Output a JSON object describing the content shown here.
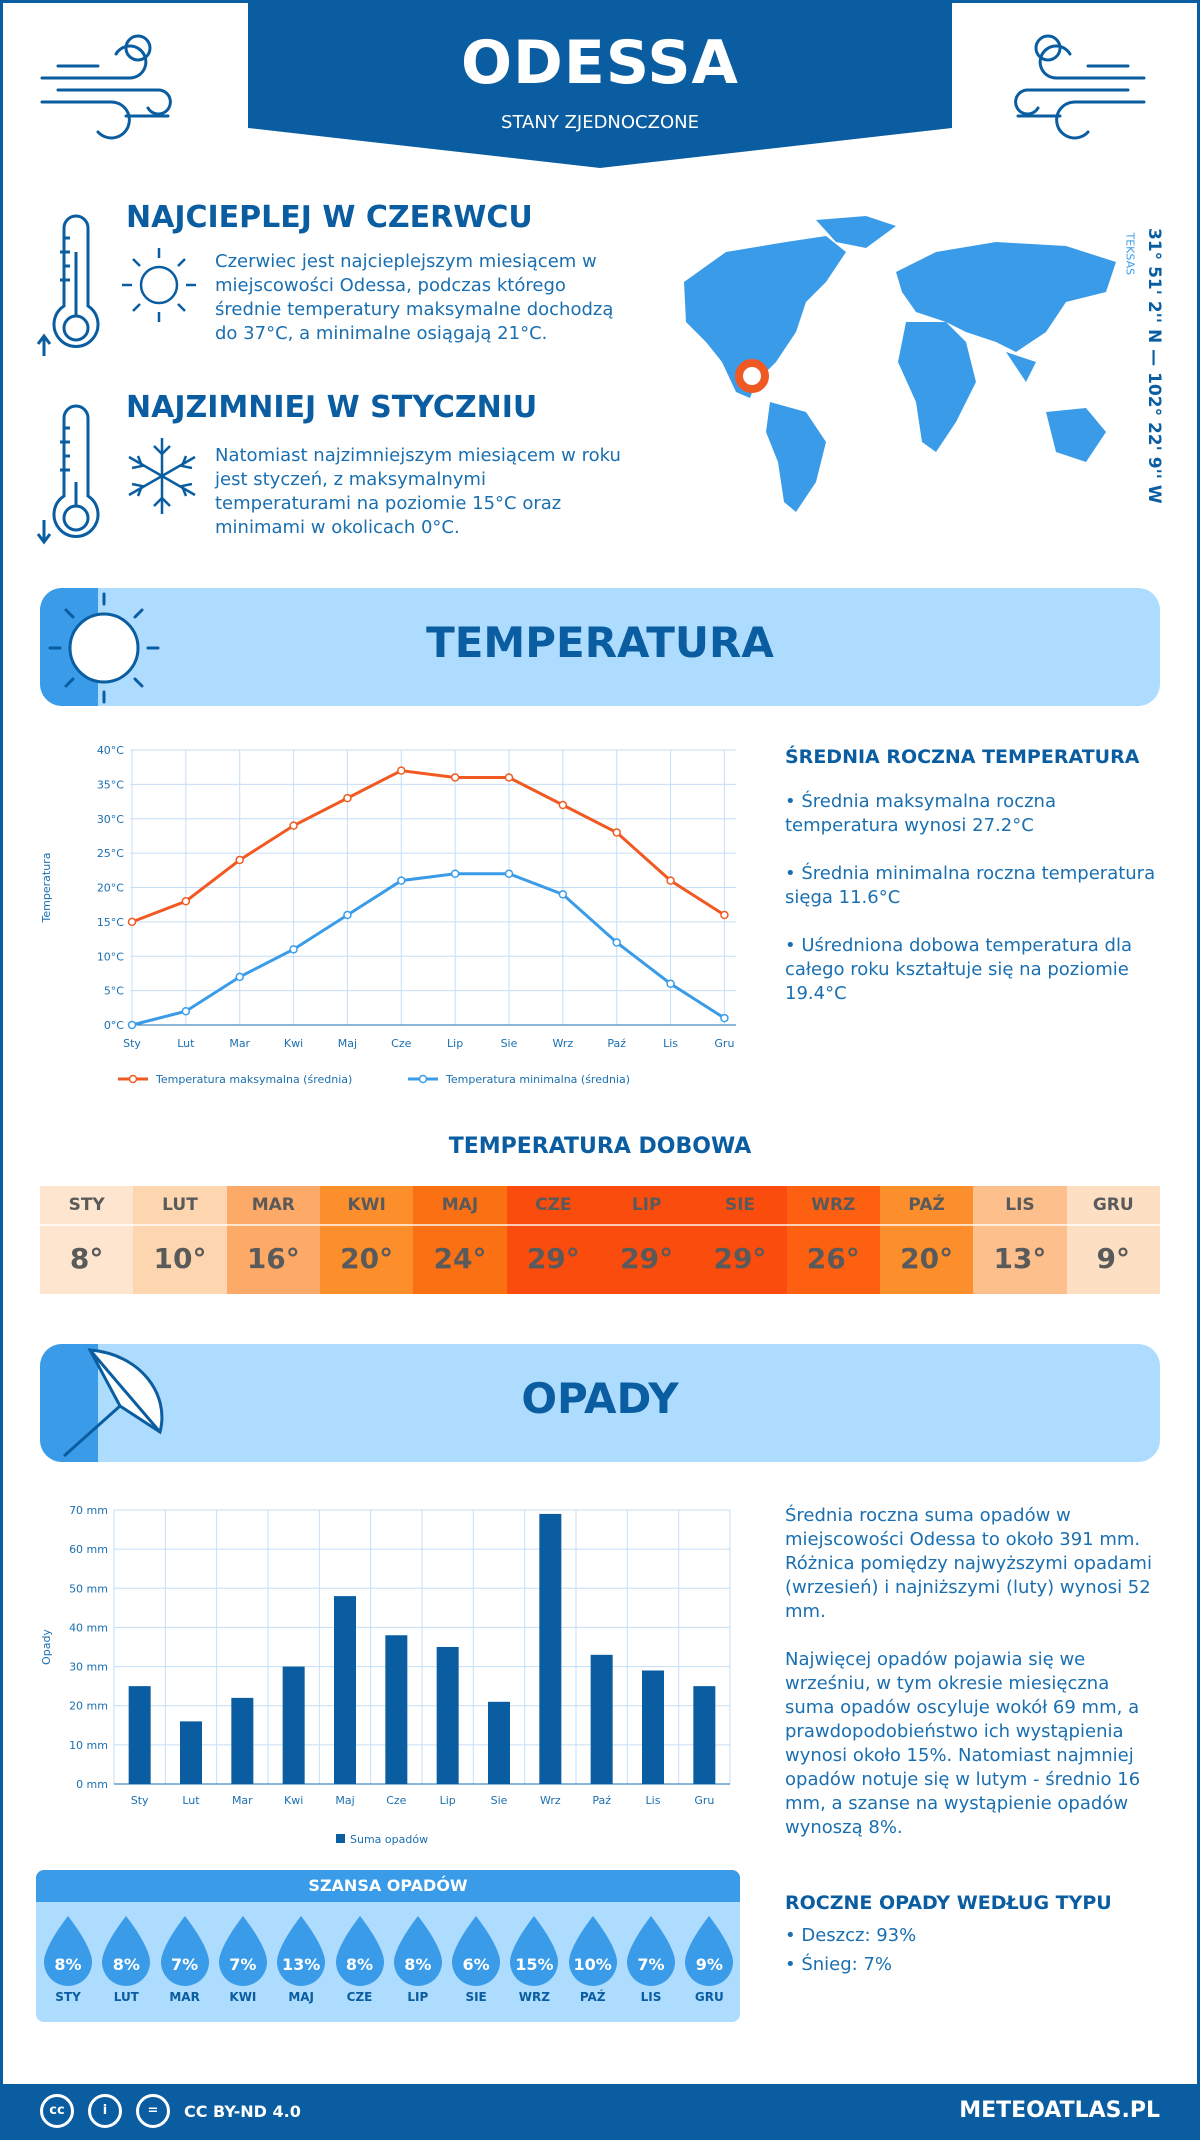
{
  "header": {
    "city": "ODESSA",
    "country": "STANY ZJEDNOCZONE"
  },
  "hottest": {
    "title": "NAJCIEPLEJ W CZERWCU",
    "text": "Czerwiec jest najcieplejszym miesiącem w miejscowości Odessa, podczas którego średnie temperatury maksymalne dochodzą do 37°C, a minimalne osiągają 21°C."
  },
  "coldest": {
    "title": "NAJZIMNIEJ W STYCZNIU",
    "text": "Natomiast najzimniejszym miesiącem w roku jest styczeń, z maksymalnymi temperaturami na poziomie 15°C oraz minimami w okolicach 0°C."
  },
  "location": {
    "coords": "31° 51' 2'' N — 102° 22' 9'' W",
    "region": "TEKSAS"
  },
  "temperature": {
    "section_title": "TEMPERATURA",
    "side_title": "ŚREDNIA ROCZNA TEMPERATURA",
    "bullets": [
      "• Średnia maksymalna roczna temperatura wynosi 27.2°C",
      "• Średnia minimalna roczna temperatura sięga 11.6°C",
      "• Uśredniona dobowa temperatura dla całego roku kształtuje się na poziomie 19.4°C"
    ],
    "daily_title": "TEMPERATURA DOBOWA",
    "daily": [
      {
        "m": "STY",
        "v": "8°",
        "c": "#fde5cf"
      },
      {
        "m": "LUT",
        "v": "10°",
        "c": "#fdd6b0"
      },
      {
        "m": "MAR",
        "v": "16°",
        "c": "#fdaa68"
      },
      {
        "m": "KWI",
        "v": "20°",
        "c": "#fd8e2c"
      },
      {
        "m": "MAJ",
        "v": "24°",
        "c": "#fc7014"
      },
      {
        "m": "CZE",
        "v": "29°",
        "c": "#fa4c0c"
      },
      {
        "m": "LIP",
        "v": "29°",
        "c": "#fa4c0c"
      },
      {
        "m": "SIE",
        "v": "29°",
        "c": "#fa4c0c"
      },
      {
        "m": "WRZ",
        "v": "26°",
        "c": "#fc6010"
      },
      {
        "m": "PAŹ",
        "v": "20°",
        "c": "#fd8e2c"
      },
      {
        "m": "LIS",
        "v": "13°",
        "c": "#fdc08c"
      },
      {
        "m": "GRU",
        "v": "9°",
        "c": "#fde0c4"
      }
    ]
  },
  "precip": {
    "section_title": "OPADY",
    "text1": "Średnia roczna suma opadów w miejscowości Odessa to około 391 mm. Różnica pomiędzy najwyższymi opadami (wrzesień) i najniższymi (luty) wynosi 52 mm.",
    "text2": "Najwięcej opadów pojawia się we wrześniu, w tym okresie miesięczna suma opadów oscyluje wokół 69 mm, a prawdopodobieństwo ich wystąpienia wynosi około 15%. Natomiast najmniej opadów notuje się w lutym - średnio 16 mm, a szanse na wystąpienie opadów wynoszą 8%.",
    "type_title": "ROCZNE OPADY WEDŁUG TYPU",
    "types": [
      "• Deszcz: 93%",
      "• Śnieg: 7%"
    ],
    "chance_title": "SZANSA OPADÓW",
    "chance": [
      {
        "m": "STY",
        "v": "8%"
      },
      {
        "m": "LUT",
        "v": "8%"
      },
      {
        "m": "MAR",
        "v": "7%"
      },
      {
        "m": "KWI",
        "v": "7%"
      },
      {
        "m": "MAJ",
        "v": "13%"
      },
      {
        "m": "CZE",
        "v": "8%"
      },
      {
        "m": "LIP",
        "v": "8%"
      },
      {
        "m": "SIE",
        "v": "6%"
      },
      {
        "m": "WRZ",
        "v": "15%"
      },
      {
        "m": "PAŹ",
        "v": "10%"
      },
      {
        "m": "LIS",
        "v": "7%"
      },
      {
        "m": "GRU",
        "v": "9%"
      }
    ]
  },
  "footer": {
    "license": "CC BY-ND 4.0",
    "site": "METEOATLAS.PL"
  },
  "colors": {
    "primary": "#0a5da0",
    "light": "#aedcfe",
    "max_line": "#f05a22",
    "min_line": "#3a9ce8",
    "bar": "#0a5da0"
  },
  "chart_data": [
    {
      "type": "line",
      "categories": [
        "Sty",
        "Lut",
        "Mar",
        "Kwi",
        "Maj",
        "Cze",
        "Lip",
        "Sie",
        "Wrz",
        "Paź",
        "Lis",
        "Gru"
      ],
      "series": [
        {
          "name": "Temperatura maksymalna (średnia)",
          "values": [
            15,
            18,
            24,
            29,
            33,
            37,
            36,
            36,
            32,
            28,
            21,
            16
          ]
        },
        {
          "name": "Temperatura minimalna (średnia)",
          "values": [
            0,
            2,
            7,
            11,
            16,
            21,
            22,
            22,
            19,
            12,
            6,
            1
          ]
        }
      ],
      "ylabel": "Temperatura",
      "ylim": [
        0,
        40
      ],
      "yticks": [
        "0°C",
        "5°C",
        "10°C",
        "15°C",
        "20°C",
        "25°C",
        "30°C",
        "35°C",
        "40°C"
      ],
      "grid": true,
      "legend": "bottom"
    },
    {
      "type": "bar",
      "categories": [
        "Sty",
        "Lut",
        "Mar",
        "Kwi",
        "Maj",
        "Cze",
        "Lip",
        "Sie",
        "Wrz",
        "Paź",
        "Lis",
        "Gru"
      ],
      "series": [
        {
          "name": "Suma opadów",
          "values": [
            25,
            16,
            22,
            30,
            48,
            38,
            35,
            21,
            69,
            33,
            29,
            25
          ]
        }
      ],
      "ylabel": "Opady",
      "ylim": [
        0,
        70
      ],
      "yticks": [
        "0 mm",
        "10 mm",
        "20 mm",
        "30 mm",
        "40 mm",
        "50 mm",
        "60 mm",
        "70 mm"
      ],
      "grid": true,
      "legend": "bottom"
    }
  ]
}
